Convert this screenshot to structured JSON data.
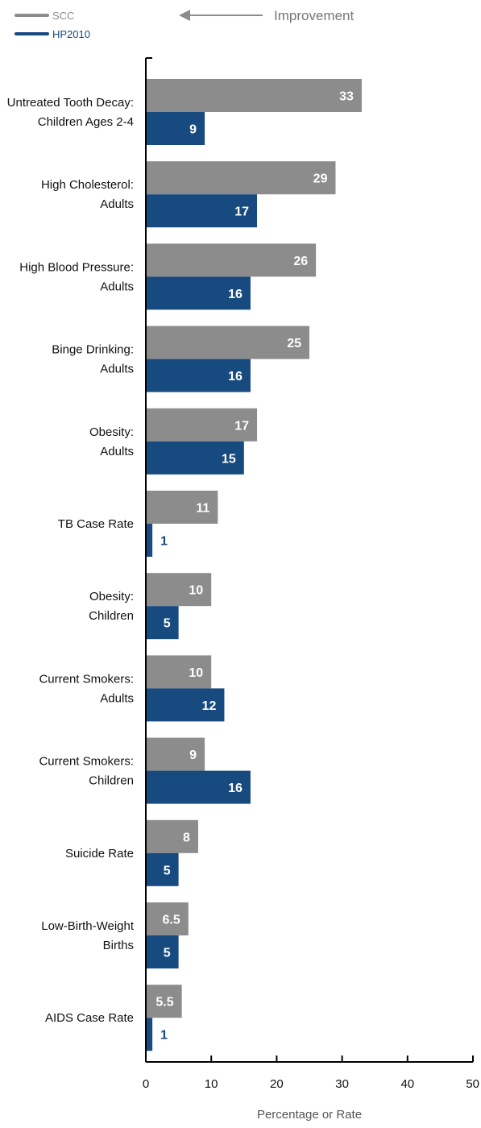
{
  "chart_data": {
    "type": "bar",
    "orientation": "horizontal",
    "categories": [
      [
        "Untreated Tooth Decay:",
        "Children Ages 2-4"
      ],
      [
        "High Cholesterol:",
        "Adults"
      ],
      [
        "High Blood Pressure:",
        "Adults"
      ],
      [
        "Binge Drinking:",
        "Adults"
      ],
      [
        "Obesity:",
        "Adults"
      ],
      [
        "TB Case Rate"
      ],
      [
        "Obesity:",
        "Children"
      ],
      [
        "Current Smokers:",
        "Adults"
      ],
      [
        "Current Smokers:",
        "Children"
      ],
      [
        "Suicide Rate"
      ],
      [
        "Low-Birth-Weight",
        "Births"
      ],
      [
        "AIDS Case Rate"
      ]
    ],
    "series": [
      {
        "name": "SCC",
        "color": "#8c8c8c",
        "values": [
          33,
          29,
          26,
          25,
          17,
          11,
          10,
          10,
          9,
          8,
          6.5,
          5.5
        ],
        "labels": [
          "33",
          "29",
          "26",
          "25",
          "17",
          "11",
          "10",
          "10",
          "9",
          "8",
          "6.5",
          "5.5"
        ]
      },
      {
        "name": "HP2010",
        "color": "#174a7e",
        "values": [
          9,
          17,
          16,
          16,
          15,
          1,
          5,
          12,
          16,
          5,
          5,
          1
        ],
        "labels": [
          "9",
          "17",
          "16",
          "16",
          "15",
          "1",
          "5",
          "12",
          "16",
          "5",
          "5",
          "1"
        ]
      }
    ],
    "xlim": [
      0,
      50
    ],
    "xticks": [
      "0",
      "10",
      "20",
      "30",
      "40",
      "50"
    ],
    "xlabel": "Percentage or Rate",
    "annotation": "Improvement",
    "annotation_direction": "left",
    "legend_position": "top-left",
    "grid": false
  }
}
